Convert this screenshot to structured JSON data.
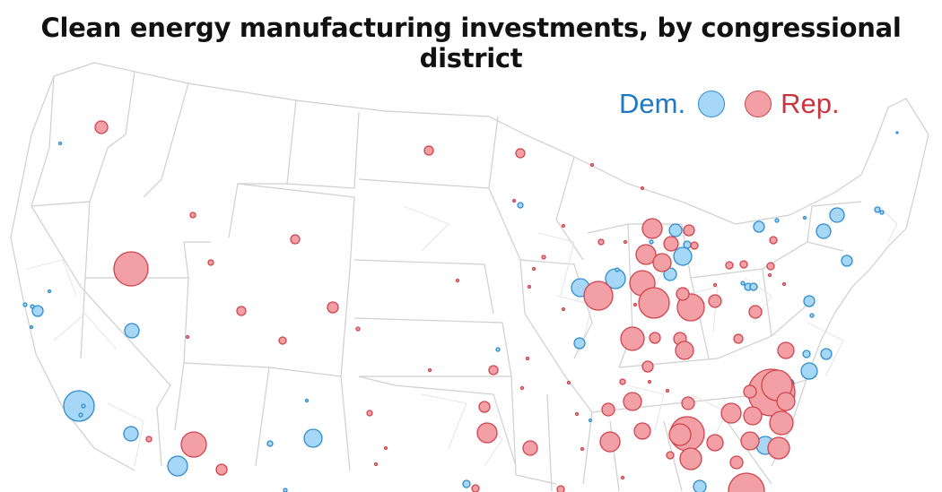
{
  "title": "Clean energy manufacturing investments, by congressional district",
  "legend": {
    "dem": {
      "label": "Dem.",
      "fill": "#a6d7f7",
      "stroke": "#2e8bcf",
      "text_color": "#1f78c1"
    },
    "rep": {
      "label": "Rep.",
      "fill": "#f2a0a6",
      "stroke": "#d1434c",
      "text_color": "#c9353e"
    }
  },
  "map_style": {
    "land": "#ffffff",
    "borders": "#d6d6d6",
    "states": "#cfcfcf"
  }
}
